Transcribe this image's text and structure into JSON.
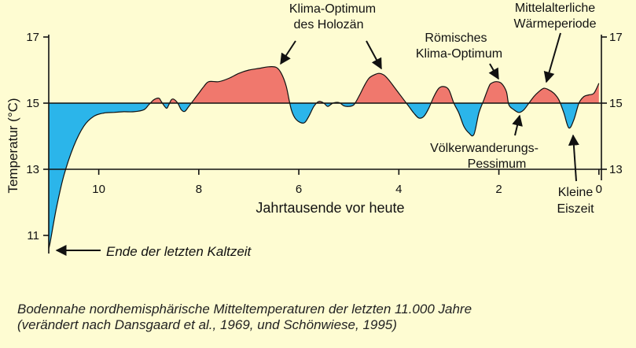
{
  "chart_data": {
    "type": "area",
    "baseline": 15,
    "ylabel": "Temperatur (°C)",
    "xlabel": "Jahrtausende vor heute",
    "xlim": [
      11.0,
      -0.05
    ],
    "ylim": [
      10.5,
      17
    ],
    "xticks": [
      10,
      8,
      6,
      4,
      2,
      0
    ],
    "yticks": [
      17,
      15,
      13,
      11
    ],
    "yticks_right": [
      17,
      15,
      13
    ],
    "colors": {
      "above": "#f0786d",
      "below": "#2bb5ea",
      "line": "#111111",
      "background": "#fefcd2"
    },
    "series": [
      {
        "x": [
          11.0,
          10.97,
          10.85,
          10.7,
          10.5,
          10.3,
          10.1,
          9.9,
          9.7,
          9.5,
          9.3,
          9.1,
          9.0,
          8.9,
          8.8,
          8.75,
          8.65,
          8.6,
          8.55,
          8.5,
          8.42,
          8.35,
          8.28,
          8.2,
          8.1,
          8.0,
          7.9,
          7.8,
          7.6,
          7.4,
          7.2,
          7.0,
          6.8,
          6.6,
          6.45,
          6.35,
          6.25,
          6.15,
          6.05,
          5.9,
          5.8,
          5.7,
          5.6,
          5.5,
          5.42,
          5.32,
          5.2,
          5.1,
          5.0,
          4.9,
          4.8,
          4.7,
          4.6,
          4.5,
          4.4,
          4.3,
          4.2,
          4.1,
          4.0,
          3.9,
          3.8,
          3.7,
          3.6,
          3.5,
          3.4,
          3.3,
          3.2,
          3.1,
          3.0,
          2.9,
          2.8,
          2.7,
          2.6,
          2.5,
          2.4,
          2.3,
          2.2,
          2.15,
          2.05,
          1.95,
          1.85,
          1.8,
          1.7,
          1.6,
          1.5,
          1.4,
          1.3,
          1.2,
          1.1,
          1.0,
          0.9,
          0.8,
          0.7,
          0.6,
          0.5,
          0.4,
          0.3,
          0.2,
          0.1,
          0.0
        ],
        "y": [
          10.6,
          10.8,
          11.8,
          12.8,
          13.7,
          14.3,
          14.6,
          14.7,
          14.72,
          14.74,
          14.74,
          14.8,
          14.95,
          15.1,
          15.15,
          15.05,
          14.85,
          14.95,
          15.1,
          15.12,
          15.0,
          14.8,
          14.75,
          14.9,
          15.1,
          15.3,
          15.5,
          15.65,
          15.65,
          15.75,
          15.9,
          16.0,
          16.05,
          16.1,
          16.08,
          15.9,
          15.5,
          14.8,
          14.5,
          14.4,
          14.6,
          14.9,
          15.05,
          15.0,
          14.9,
          15.0,
          15.02,
          14.92,
          14.9,
          14.95,
          15.2,
          15.5,
          15.75,
          15.85,
          15.9,
          15.85,
          15.7,
          15.5,
          15.3,
          15.1,
          14.9,
          14.7,
          14.55,
          14.6,
          14.85,
          15.2,
          15.45,
          15.5,
          15.4,
          15.0,
          14.7,
          14.3,
          14.1,
          14.05,
          14.7,
          15.1,
          15.5,
          15.6,
          15.65,
          15.6,
          15.35,
          14.95,
          14.8,
          14.72,
          14.8,
          15.0,
          15.2,
          15.35,
          15.45,
          15.4,
          15.3,
          15.1,
          14.7,
          14.25,
          14.5,
          15.0,
          15.2,
          15.25,
          15.3,
          15.6
        ]
      }
    ],
    "annotations": [
      {
        "lines": [
          "Klima-Optimum",
          "des Holozän"
        ]
      },
      {
        "lines": [
          "Mittelalterliche",
          "Wärmeperiode"
        ]
      },
      {
        "lines": [
          "Römisches",
          "Klima-Optimum"
        ]
      },
      {
        "lines": [
          "Völkerwanderungs-",
          "Pessimum"
        ]
      },
      {
        "lines": [
          "Kleine",
          "Eiszeit"
        ]
      },
      {
        "lines": [
          "Ende der letzten Kaltzeit"
        ]
      }
    ],
    "caption": [
      "Bodennahe nordhemisphärische Mitteltemperaturen der letzten 11.000 Jahre",
      "(verändert nach Dansgaard et al., 1969, und Schönwiese, 1995)"
    ]
  }
}
